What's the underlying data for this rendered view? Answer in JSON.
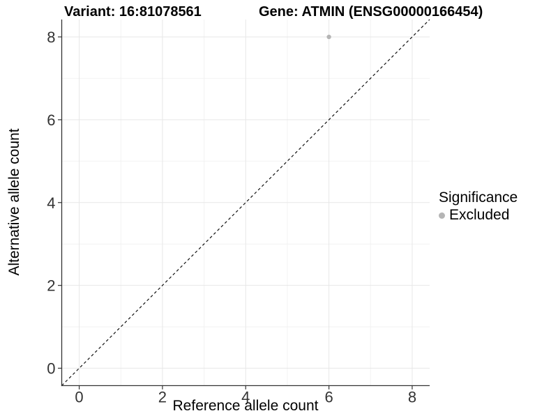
{
  "header": {
    "variant_title": "Variant: 16:81078561",
    "gene_title": "Gene: ATMIN (ENSG00000166454)"
  },
  "chart_data": {
    "type": "scatter",
    "xlabel": "Reference allele count",
    "ylabel": "Alternative allele count",
    "xlim": [
      -0.42,
      8.42
    ],
    "ylim": [
      -0.42,
      8.42
    ],
    "x_major_ticks": [
      0,
      2,
      4,
      6,
      8
    ],
    "y_major_ticks": [
      0,
      2,
      4,
      6,
      8
    ],
    "x_minor_gridlines": [
      1,
      3,
      5,
      7
    ],
    "y_minor_gridlines": [
      1,
      3,
      5,
      7
    ],
    "grid": true,
    "points": [
      {
        "x": 6,
        "y": 8,
        "significance": "Excluded"
      }
    ],
    "reference_line": {
      "slope": 1,
      "intercept": 0,
      "style": "dashed"
    },
    "legend": {
      "title": "Significance",
      "position": "right",
      "entries": [
        {
          "label": "Excluded",
          "color": "#b5b5b5"
        }
      ]
    },
    "colors": {
      "point": "#b5b5b5",
      "grid_major": "#e7e7e7",
      "grid_minor": "#f2f2f2",
      "axis_line": "#333333",
      "tick_label": "#333333",
      "reference_line": "#111111"
    }
  }
}
